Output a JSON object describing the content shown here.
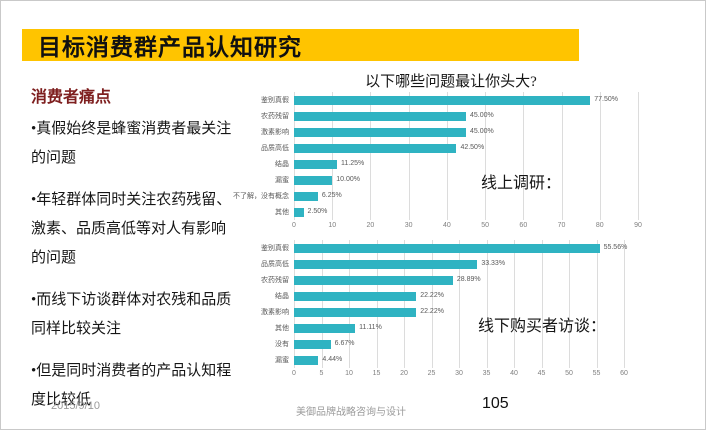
{
  "slide": {
    "title": "目标消费群产品认知研究",
    "footer": {
      "date": "2015/9/10",
      "company": "美御品牌战略咨询与设计",
      "page_number": "105"
    }
  },
  "left_panel": {
    "heading": "消费者痛点",
    "bullets": [
      "•真假始终是蜂蜜消费者最关注的问题",
      "•年轻群体同时关注农药残留、激素、品质高低等对人有影响的问题",
      "•而线下访谈群体对农残和品质同样比较关注",
      "•但是同时消费者的产品认知程度比较低"
    ]
  },
  "annotations": {
    "online": "线上调研：",
    "offline": "线下购买者访谈："
  },
  "colors": {
    "accent_yellow": "#FFC400",
    "bar_teal": "#2FB3C2",
    "heading_red": "#7E1F1F",
    "label_gray": "#595959",
    "gridline_gray": "#DCDCDC"
  },
  "chart_data": [
    {
      "type": "bar",
      "orientation": "horizontal",
      "title": "以下哪些问题最让你头大?",
      "annotation": "线上调研：",
      "categories": [
        "鉴别真假",
        "农药残留",
        "激素影响",
        "品质高低",
        "结晶",
        "漏蜜",
        "不了解，没有概念",
        "其他"
      ],
      "values": [
        77.5,
        45.0,
        45.0,
        42.5,
        11.25,
        10.0,
        6.25,
        2.5
      ],
      "value_labels": [
        "77.50%",
        "45.00%",
        "45.00%",
        "42.50%",
        "11.25%",
        "10.00%",
        "6.25%",
        "2.50%"
      ],
      "xlim": [
        0,
        90
      ],
      "xticks": [
        0,
        10,
        20,
        30,
        40,
        50,
        60,
        70,
        80,
        90
      ],
      "grid": true,
      "legend": "none"
    },
    {
      "type": "bar",
      "orientation": "horizontal",
      "title": "",
      "annotation": "线下购买者访谈：",
      "categories": [
        "鉴别真假",
        "品质高低",
        "农药残留",
        "结晶",
        "激素影响",
        "其他",
        "没有",
        "漏蜜"
      ],
      "values": [
        55.56,
        33.33,
        28.89,
        22.22,
        22.22,
        11.11,
        6.67,
        4.44
      ],
      "value_labels": [
        "55.56%",
        "33.33%",
        "28.89%",
        "22.22%",
        "22.22%",
        "11.11%",
        "6.67%",
        "4.44%"
      ],
      "xlim": [
        0,
        60
      ],
      "xticks": [
        0,
        5,
        10,
        15,
        20,
        25,
        30,
        35,
        40,
        45,
        50,
        55,
        60
      ],
      "grid": true,
      "legend": "none"
    }
  ]
}
